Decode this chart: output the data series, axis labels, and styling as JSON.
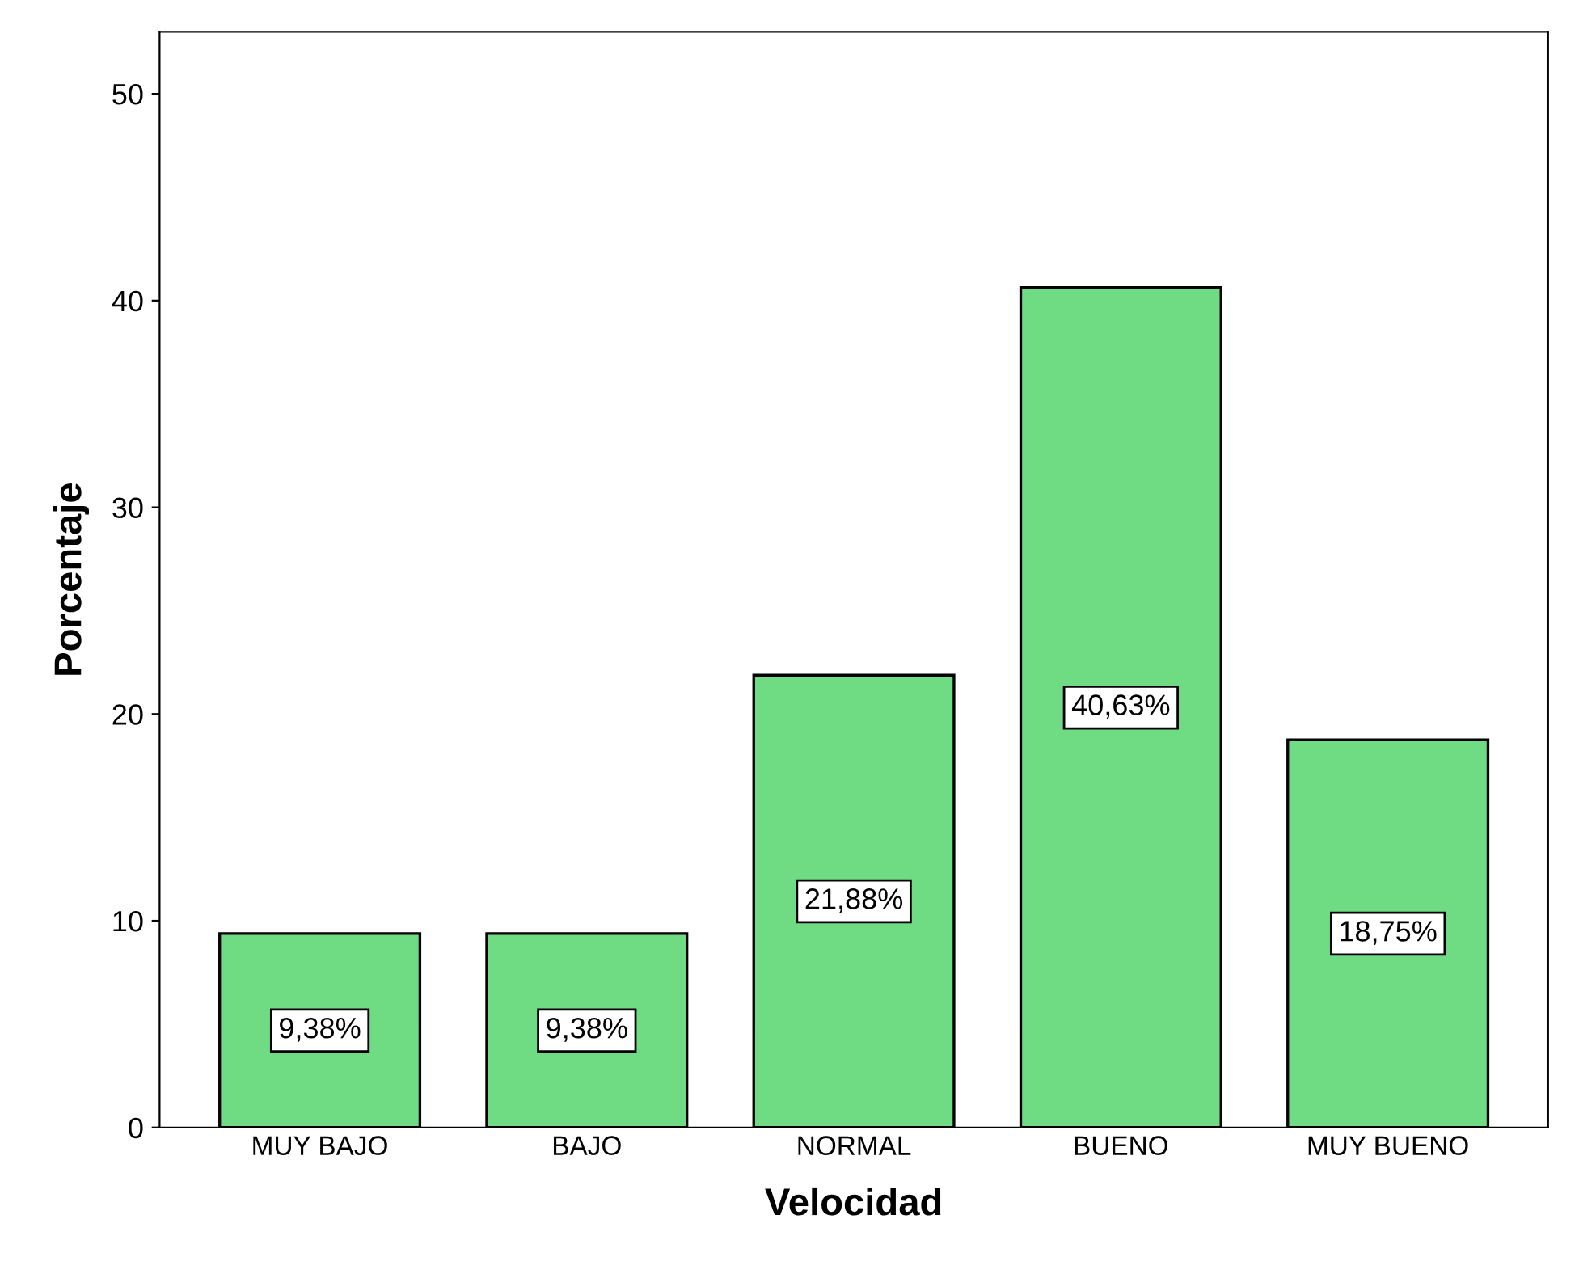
{
  "chart_data": {
    "type": "bar",
    "xlabel": "Velocidad",
    "ylabel": "Porcentaje",
    "categories": [
      "MUY BAJO",
      "BAJO",
      "NORMAL",
      "BUENO",
      "MUY BUENO"
    ],
    "values": [
      9.38,
      9.38,
      21.88,
      40.63,
      18.75
    ],
    "value_labels": [
      "9,38%",
      "9,38%",
      "21,88%",
      "40,63%",
      "18,75%"
    ],
    "color": "#6fdc84",
    "ylim": [
      0,
      53
    ],
    "yticks": [
      0,
      10,
      20,
      30,
      40,
      50
    ],
    "grid": false,
    "legend": false
  }
}
